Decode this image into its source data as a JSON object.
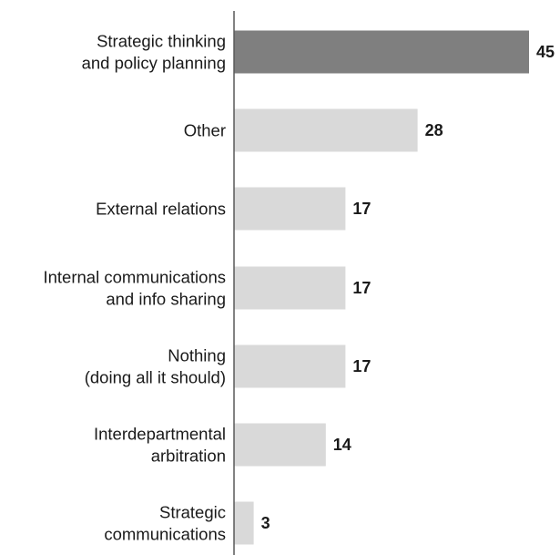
{
  "chart_data": {
    "type": "bar",
    "orientation": "horizontal",
    "categories": [
      [
        "Strategic thinking",
        "and policy planning"
      ],
      [
        "Other"
      ],
      [
        "External relations"
      ],
      [
        "Internal communications",
        "and info sharing"
      ],
      [
        "Nothing",
        "(doing all it should)"
      ],
      [
        "Interdepartmental",
        "arbitration"
      ],
      [
        "Strategic",
        "communications"
      ]
    ],
    "values": [
      45,
      28,
      17,
      17,
      17,
      14,
      3
    ],
    "highlight_index": 0,
    "colors": {
      "highlight": "#7f7f7f",
      "default": "#d9d9d9",
      "axis": "#595959"
    },
    "xlim": [
      0,
      45
    ],
    "grid": false,
    "legend": "none"
  }
}
